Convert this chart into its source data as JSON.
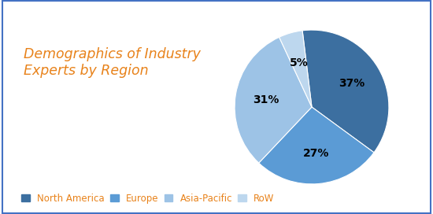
{
  "title": "Demographics of Industry\nExperts by Region",
  "title_color": "#E8821A",
  "title_fontsize": 12.5,
  "slices": [
    37,
    27,
    31,
    5
  ],
  "labels": [
    "37%",
    "27%",
    "31%",
    "5%"
  ],
  "legend_labels": [
    "North America",
    "Europe",
    "Asia-Pacific",
    "RoW"
  ],
  "colors": [
    "#3C6FA0",
    "#5B9BD5",
    "#9DC3E6",
    "#BDD7EE"
  ],
  "background_color": "#FFFFFF",
  "border_color": "#4472C4",
  "legend_text_color": "#E8821A",
  "label_fontsize": 10,
  "legend_fontsize": 8.5,
  "startangle": 90
}
